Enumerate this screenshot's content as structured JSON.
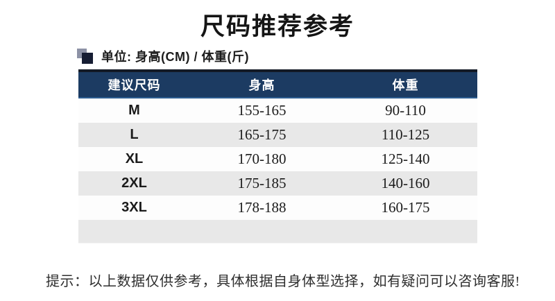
{
  "page": {
    "title": "尺码推荐参考",
    "unit_note": "单位: 身高(CM) / 体重(斤)",
    "tip": "提示：以上数据仅供参考，具体根据自身体型选择，如有疑问可以咨询客服!"
  },
  "table": {
    "headers": [
      "建议尺码",
      "身高",
      "体重"
    ],
    "rows": [
      {
        "size": "M",
        "height": "155-165",
        "weight": "90-110"
      },
      {
        "size": "L",
        "height": "165-175",
        "weight": "110-125"
      },
      {
        "size": "XL",
        "height": "170-180",
        "weight": "125-140"
      },
      {
        "size": "2XL",
        "height": "175-185",
        "weight": "140-160"
      },
      {
        "size": "3XL",
        "height": "178-188",
        "weight": "160-175"
      }
    ]
  },
  "icons": {
    "unit_marker": "overlapping-squares-icon"
  },
  "colors": {
    "header_bg": "#1c3b62",
    "header_border_top": "#131a26",
    "header_border_bottom": "#2d5e92",
    "header_text": "#ffffff",
    "stripe_bg": "#e8e8e8",
    "body_text": "#1b1b1b"
  }
}
